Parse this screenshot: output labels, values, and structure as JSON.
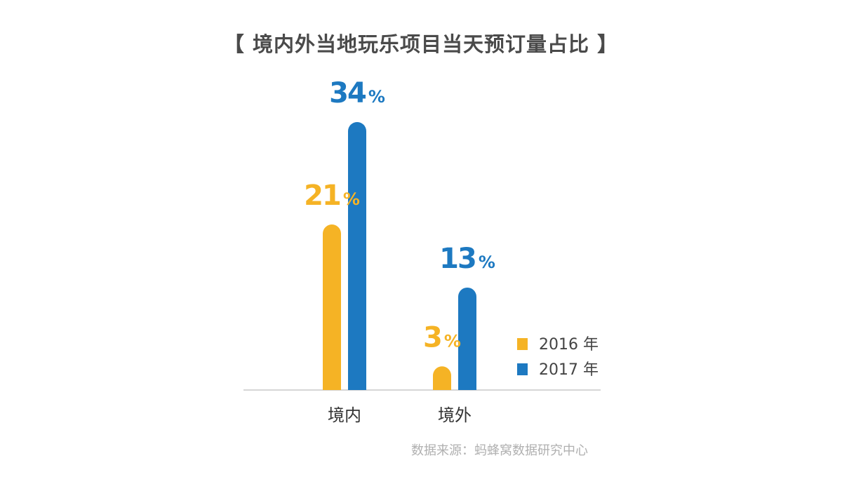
{
  "title": "【 境内外当地玩乐项目当天预订量占比 】",
  "source": "数据来源：蚂蜂窝数据研究中心",
  "chart_data": {
    "type": "bar",
    "categories": [
      "境内",
      "境外"
    ],
    "series": [
      {
        "name": "2016 年",
        "values": [
          21,
          3
        ],
        "labels": [
          "21",
          "3"
        ],
        "color": "#f5b325"
      },
      {
        "name": "2017 年",
        "values": [
          34,
          13
        ],
        "labels": [
          "34",
          "13"
        ],
        "color": "#1d79c1"
      }
    ],
    "unit": "%",
    "ylim": [
      0,
      34
    ],
    "grid": false,
    "legend_position": "right"
  }
}
